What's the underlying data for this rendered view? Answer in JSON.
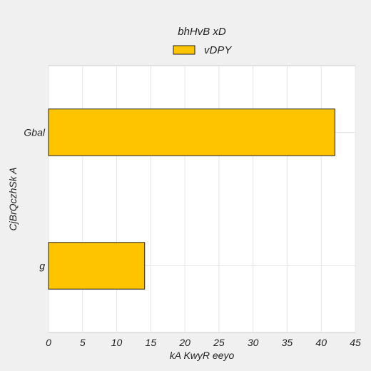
{
  "chart_data": {
    "type": "bar",
    "orientation": "horizontal",
    "categories": [
      "Gbal",
      "g"
    ],
    "series": [
      {
        "name": "vDPY",
        "values": [
          42,
          14.1
        ],
        "color": "#ffc400"
      }
    ],
    "xlabel": "kA  KwyR eeyo",
    "ylabel": "CjBrQczhSk A",
    "legend_title": "bhHvB xD",
    "xlim": [
      0,
      45
    ],
    "xticks": [
      0,
      5,
      10,
      15,
      20,
      25,
      30,
      35,
      40,
      45
    ],
    "xtick_labels": [
      "0",
      "5",
      "10",
      "15",
      "20",
      "25",
      "30",
      "35",
      "40",
      "45"
    ],
    "grid": true,
    "legend_position": "top-center",
    "colors": {
      "background": "#f0f0f0",
      "plot_background": "#ffffff",
      "grid": "#e6e6e6",
      "bar_edge": "#222222"
    }
  }
}
